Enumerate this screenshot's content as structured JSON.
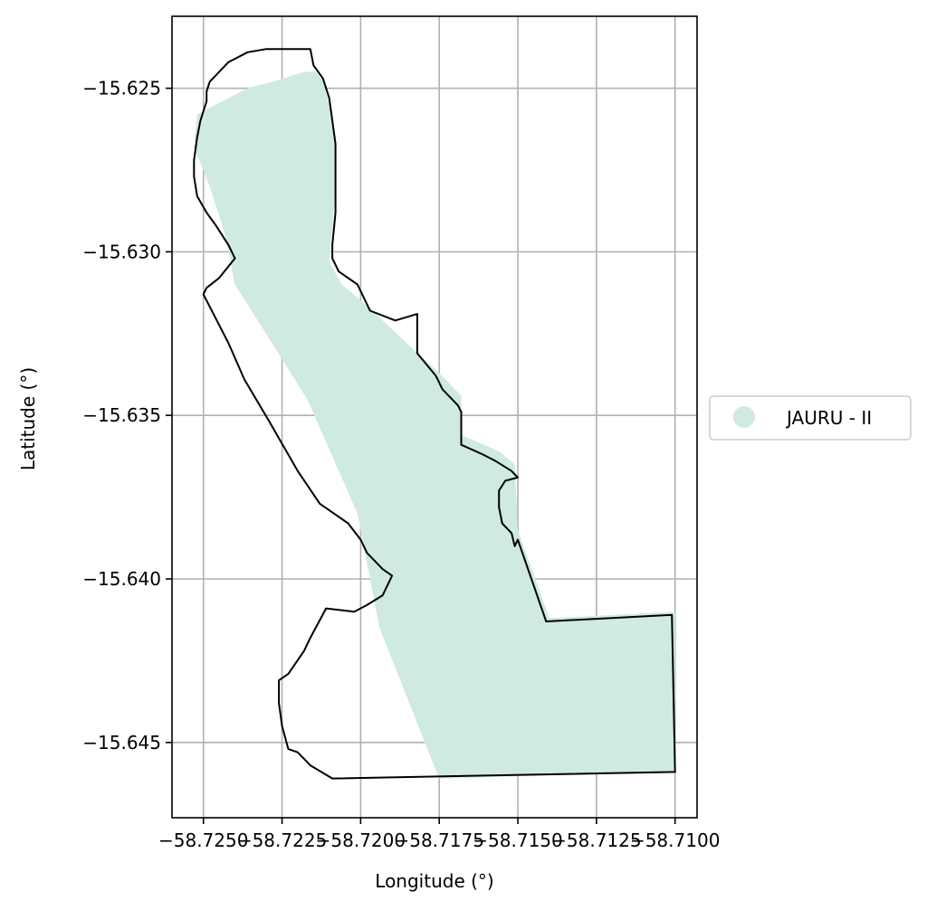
{
  "chart_data": {
    "type": "map",
    "xlabel": "Longitude (°)",
    "ylabel": "Latitude (°)",
    "xlim": [
      -58.726,
      -58.7093
    ],
    "ylim": [
      -15.6473,
      -15.6228
    ],
    "x_ticks": [
      -58.725,
      -58.7225,
      -58.72,
      -58.7175,
      -58.715,
      -58.7125,
      -58.71
    ],
    "x_tick_labels": [
      "−58.7250",
      "−58.7225",
      "−58.7200",
      "−58.7175",
      "−58.7150",
      "−58.7125",
      "−58.7100"
    ],
    "y_ticks": [
      -15.625,
      -15.63,
      -15.635,
      -15.64,
      -15.645
    ],
    "y_tick_labels": [
      "−15.625",
      "−15.630",
      "−15.635",
      "−15.640",
      "−15.645"
    ],
    "grid": true,
    "legend": {
      "placement": "right",
      "entries": [
        {
          "label": "JAURU - II",
          "color": "#cfeade",
          "marker": "circle"
        }
      ]
    },
    "fill_region": {
      "color": "#cfeade",
      "points": [
        [
          -58.7252,
          -15.6258
        ],
        [
          -58.7236,
          -15.625
        ],
        [
          -58.7228,
          -15.6248
        ],
        [
          -58.7218,
          -15.6245
        ],
        [
          -58.7214,
          -15.6245
        ],
        [
          -58.7212,
          -15.6248
        ],
        [
          -58.721,
          -15.6255
        ],
        [
          -58.7208,
          -15.6268
        ],
        [
          -58.7208,
          -15.628
        ],
        [
          -58.7209,
          -15.6293
        ],
        [
          -58.721,
          -15.6303
        ],
        [
          -58.7206,
          -15.631
        ],
        [
          -58.7201,
          -15.6314
        ],
        [
          -58.7194,
          -15.632
        ],
        [
          -58.7182,
          -15.6331
        ],
        [
          -58.7175,
          -15.6337
        ],
        [
          -58.7168,
          -15.6344
        ],
        [
          -58.7168,
          -15.6356
        ],
        [
          -58.7156,
          -15.6361
        ],
        [
          -58.7151,
          -15.6365
        ],
        [
          -58.715,
          -15.6385
        ],
        [
          -58.714,
          -15.6412
        ],
        [
          -58.71,
          -15.641
        ],
        [
          -58.71,
          -15.6459
        ],
        [
          -58.7175,
          -15.6461
        ],
        [
          -58.7194,
          -15.6415
        ],
        [
          -58.7201,
          -15.638
        ],
        [
          -58.7217,
          -15.6345
        ],
        [
          -58.724,
          -15.631
        ],
        [
          -58.7243,
          -15.6295
        ],
        [
          -58.7248,
          -15.628
        ],
        [
          -58.7253,
          -15.6268
        ]
      ]
    },
    "boundary": {
      "color": "#000000",
      "points": [
        [
          -58.7248,
          -15.6248
        ],
        [
          -58.7242,
          -15.6242
        ],
        [
          -58.7236,
          -15.6239
        ],
        [
          -58.723,
          -15.6238
        ],
        [
          -58.722,
          -15.6238
        ],
        [
          -58.7216,
          -15.6238
        ],
        [
          -58.7215,
          -15.6243
        ],
        [
          -58.7212,
          -15.6247
        ],
        [
          -58.721,
          -15.6253
        ],
        [
          -58.7208,
          -15.6267
        ],
        [
          -58.7208,
          -15.6275
        ],
        [
          -58.7208,
          -15.6288
        ],
        [
          -58.7209,
          -15.6298
        ],
        [
          -58.7209,
          -15.6302
        ],
        [
          -58.7207,
          -15.6306
        ],
        [
          -58.7201,
          -15.631
        ],
        [
          -58.7197,
          -15.6318
        ],
        [
          -58.7189,
          -15.6321
        ],
        [
          -58.7182,
          -15.6319
        ],
        [
          -58.7182,
          -15.6325
        ],
        [
          -58.7182,
          -15.6331
        ],
        [
          -58.7176,
          -15.6338
        ],
        [
          -58.7174,
          -15.6342
        ],
        [
          -58.7169,
          -15.6347
        ],
        [
          -58.7168,
          -15.6349
        ],
        [
          -58.7168,
          -15.6359
        ],
        [
          -58.7161,
          -15.6362
        ],
        [
          -58.7157,
          -15.6364
        ],
        [
          -58.7152,
          -15.6367
        ],
        [
          -58.715,
          -15.6369
        ],
        [
          -58.7154,
          -15.637
        ],
        [
          -58.7156,
          -15.6373
        ],
        [
          -58.7156,
          -15.6378
        ],
        [
          -58.7155,
          -15.6383
        ],
        [
          -58.7152,
          -15.6386
        ],
        [
          -58.7151,
          -15.639
        ],
        [
          -58.715,
          -15.6388
        ],
        [
          -58.7141,
          -15.6413
        ],
        [
          -58.7101,
          -15.6411
        ],
        [
          -58.71,
          -15.6459
        ],
        [
          -58.7209,
          -15.6461
        ],
        [
          -58.7216,
          -15.6457
        ],
        [
          -58.722,
          -15.6453
        ],
        [
          -58.7223,
          -15.6452
        ],
        [
          -58.7225,
          -15.6445
        ],
        [
          -58.7226,
          -15.6438
        ],
        [
          -58.7226,
          -15.6431
        ],
        [
          -58.7223,
          -15.6429
        ],
        [
          -58.7218,
          -15.6422
        ],
        [
          -58.7216,
          -15.6418
        ],
        [
          -58.7211,
          -15.6409
        ],
        [
          -58.7202,
          -15.641
        ],
        [
          -58.7198,
          -15.6408
        ],
        [
          -58.7193,
          -15.6405
        ],
        [
          -58.719,
          -15.6399
        ],
        [
          -58.7193,
          -15.6397
        ],
        [
          -58.7198,
          -15.6392
        ],
        [
          -58.72,
          -15.6388
        ],
        [
          -58.7204,
          -15.6383
        ],
        [
          -58.7213,
          -15.6377
        ],
        [
          -58.722,
          -15.6367
        ],
        [
          -58.7229,
          -15.6352
        ],
        [
          -58.7237,
          -15.6339
        ],
        [
          -58.7242,
          -15.6328
        ],
        [
          -58.725,
          -15.6313
        ],
        [
          -58.7249,
          -15.6311
        ],
        [
          -58.7245,
          -15.6308
        ],
        [
          -58.724,
          -15.6302
        ],
        [
          -58.7242,
          -15.6298
        ],
        [
          -58.7246,
          -15.6292
        ],
        [
          -58.7249,
          -15.6288
        ],
        [
          -58.7252,
          -15.6283
        ],
        [
          -58.7253,
          -15.6277
        ],
        [
          -58.7253,
          -15.6272
        ],
        [
          -58.7252,
          -15.6265
        ],
        [
          -58.7251,
          -15.626
        ],
        [
          -58.725,
          -15.6257
        ],
        [
          -58.7249,
          -15.6254
        ],
        [
          -58.7249,
          -15.6251
        ]
      ]
    }
  }
}
